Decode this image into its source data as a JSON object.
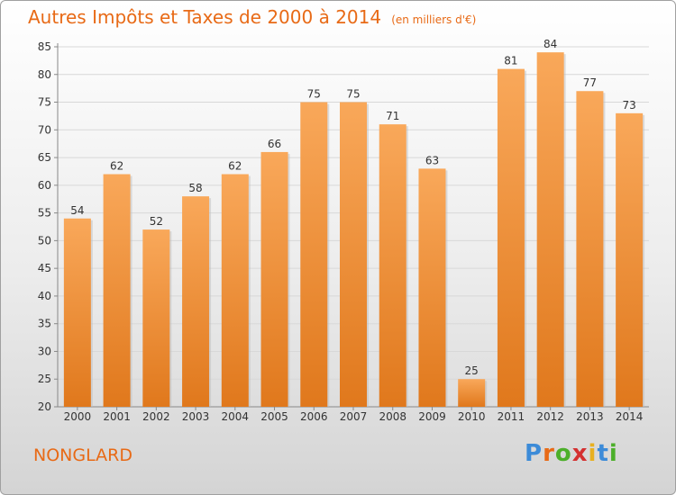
{
  "title": "Autres Impôts et Taxes de 2000 à 2014",
  "subtitle": "(en milliers d'€)",
  "commune": "NONGLARD",
  "logo": {
    "text": "Proxiti",
    "letter_colors": [
      "#3c8bd8",
      "#e86a16",
      "#4caf2a",
      "#d43030",
      "#e8b020",
      "#3c8bd8",
      "#4caf2a"
    ]
  },
  "colors": {
    "accent": "#e86a16",
    "bar_top": "#f9a85a",
    "bar_bottom": "#e0781c"
  },
  "chart_data": {
    "type": "bar",
    "title": "Autres Impôts et Taxes de 2000 à 2014",
    "subtitle": "(en milliers d'€)",
    "xlabel": "",
    "ylabel": "",
    "categories": [
      "2000",
      "2001",
      "2002",
      "2003",
      "2004",
      "2005",
      "2006",
      "2007",
      "2008",
      "2009",
      "2010",
      "2011",
      "2012",
      "2013",
      "2014"
    ],
    "values": [
      54,
      62,
      52,
      58,
      62,
      66,
      75,
      75,
      71,
      63,
      25,
      81,
      84,
      77,
      73
    ],
    "ylim": [
      20,
      85
    ],
    "yticks": [
      20,
      25,
      30,
      35,
      40,
      45,
      50,
      55,
      60,
      65,
      70,
      75,
      80,
      85
    ],
    "grid": true,
    "data_labels": true
  }
}
